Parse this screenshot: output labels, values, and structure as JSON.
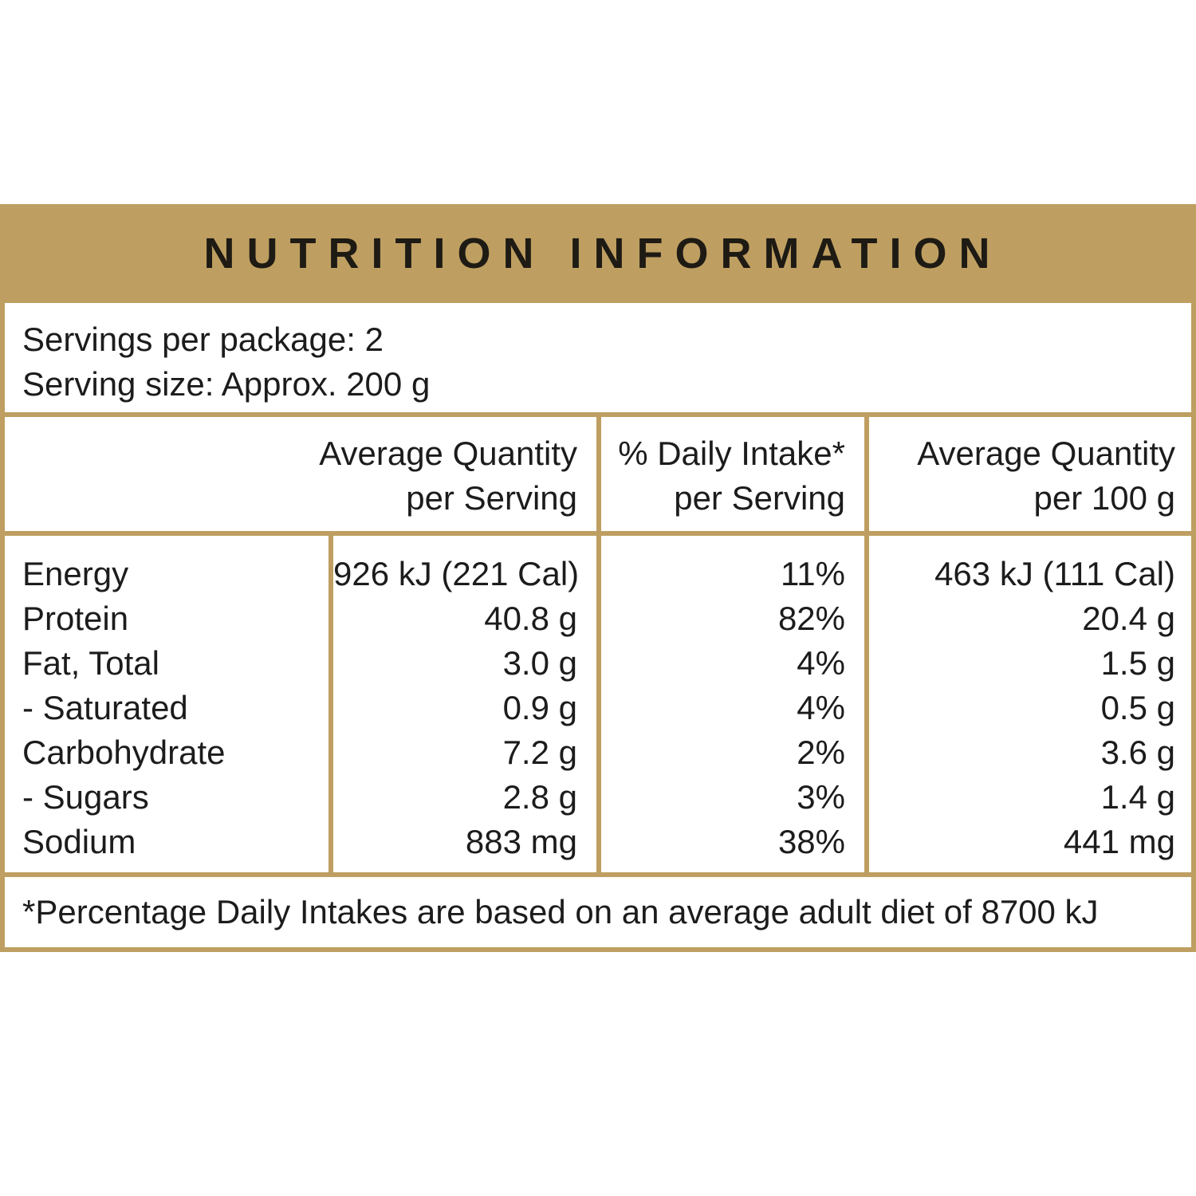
{
  "title": "NUTRITION INFORMATION",
  "servings": {
    "per_package": "Servings per package: 2",
    "serving_size": "Serving size: Approx. 200 g"
  },
  "columns": [
    {
      "line1": "Average Quantity",
      "line2": "per Serving"
    },
    {
      "line1": "% Daily Intake*",
      "line2": "per Serving"
    },
    {
      "line1": "Average Quantity",
      "line2": "per 100 g"
    }
  ],
  "rows": [
    {
      "label": "Energy",
      "per_serving": "926 kJ (221 Cal)",
      "daily_intake": "11%",
      "per_100g": "463 kJ (111 Cal)"
    },
    {
      "label": "Protein",
      "per_serving": "40.8 g",
      "daily_intake": "82%",
      "per_100g": "20.4 g"
    },
    {
      "label": "Fat, Total",
      "per_serving": "3.0 g",
      "daily_intake": "4%",
      "per_100g": "1.5 g"
    },
    {
      "label": "- Saturated",
      "per_serving": "0.9 g",
      "daily_intake": "4%",
      "per_100g": "0.5 g"
    },
    {
      "label": "Carbohydrate",
      "per_serving": "7.2 g",
      "daily_intake": "2%",
      "per_100g": "3.6 g"
    },
    {
      "label": "- Sugars",
      "per_serving": "2.8 g",
      "daily_intake": "3%",
      "per_100g": "1.4 g"
    },
    {
      "label": "Sodium",
      "per_serving": "883 mg",
      "daily_intake": "38%",
      "per_100g": "441 mg"
    }
  ],
  "footnote": "*Percentage Daily Intakes are based on an average adult diet of 8700 kJ",
  "colors": {
    "accent": "#be9f61",
    "text": "#1c1c1c"
  }
}
